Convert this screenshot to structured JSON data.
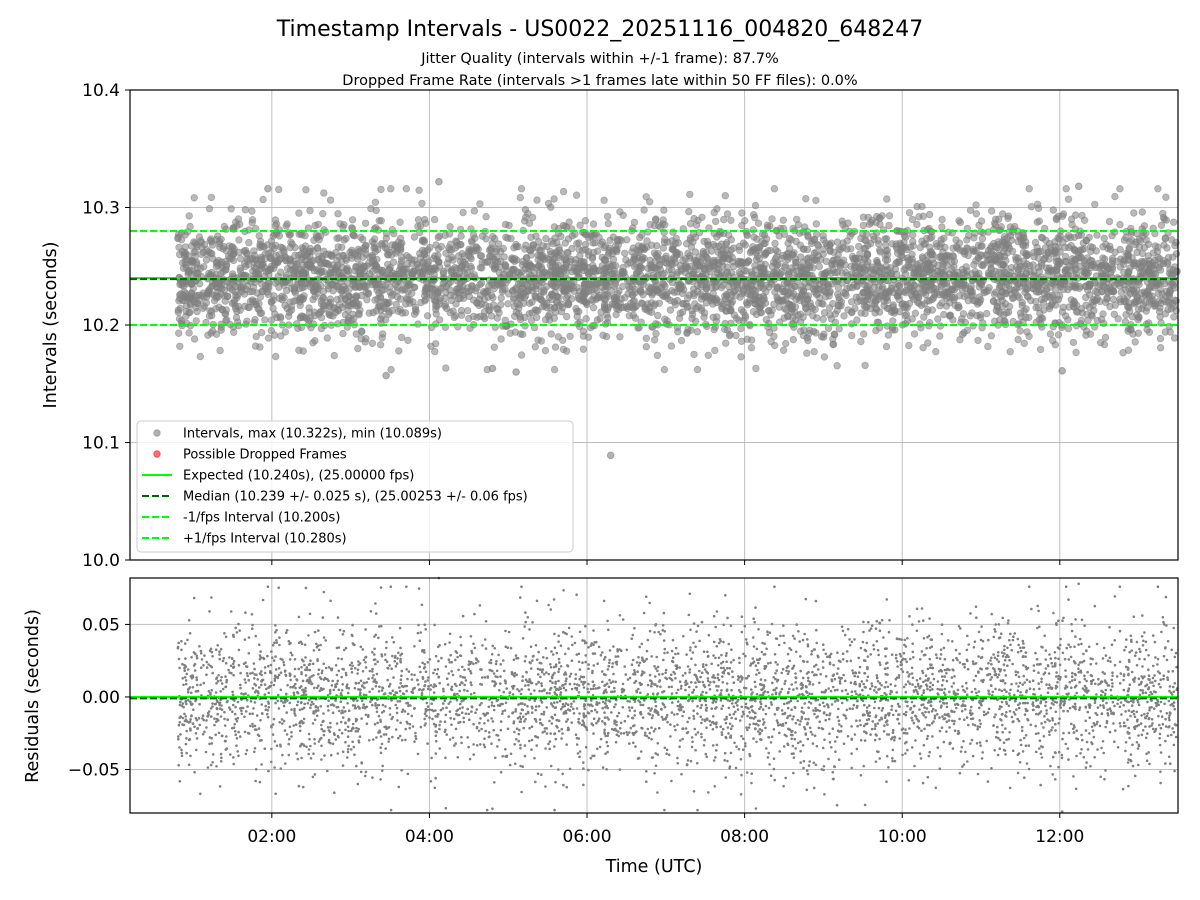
{
  "title": "Timestamp Intervals - US0022_20251116_004820_648247",
  "subtitle1": "Jitter Quality (intervals within +/-1 frame): 87.7%",
  "subtitle2": "Dropped Frame Rate (intervals >1 frames late within 50 FF files): 0.0%",
  "colors": {
    "points": "#808080",
    "dropped": "#ff0000",
    "expected": "#00ff00",
    "median": "#006400",
    "bounds": "#00ff00",
    "grid": "#b0b0b0"
  },
  "chart_data": [
    {
      "type": "scatter",
      "name": "intervals",
      "ylabel": "Intervals (seconds)",
      "xlim_hours": [
        0.2,
        13.5
      ],
      "ylim": [
        10.0,
        10.4
      ],
      "yticks": [
        10.0,
        10.1,
        10.2,
        10.3,
        10.4
      ],
      "ytick_labels": [
        "10.0",
        "10.1",
        "10.2",
        "10.3",
        "10.4"
      ],
      "series": [
        {
          "name": "Intervals, max (10.322s), min (10.089s)",
          "kind": "points",
          "x_range_hours": [
            0.8,
            13.5
          ],
          "count": 4600,
          "center": 10.24,
          "spread": 0.025,
          "max": 10.322,
          "min": 10.089,
          "notable": [
            {
              "x": 6.3,
              "y": 10.089
            },
            {
              "x": 4.12,
              "y": 10.322
            },
            {
              "x": 12.24,
              "y": 10.318
            },
            {
              "x": 1.95,
              "y": 10.316
            },
            {
              "x": 3.45,
              "y": 10.157
            },
            {
              "x": 12.03,
              "y": 10.161
            },
            {
              "x": 5.1,
              "y": 10.16
            },
            {
              "x": 4.8,
              "y": 10.163
            }
          ]
        },
        {
          "name": "Possible Dropped Frames",
          "kind": "points",
          "values": []
        },
        {
          "name": "Expected (10.240s), (25.00000 fps)",
          "kind": "hline",
          "value": 10.24
        },
        {
          "name": "Median (10.239 +/- 0.025 s), (25.00253 +/- 0.06 fps)",
          "kind": "hline",
          "value": 10.239
        },
        {
          "name": "-1/fps Interval (10.200s)",
          "kind": "hline",
          "value": 10.2
        },
        {
          "name": "+1/fps Interval (10.280s)",
          "kind": "hline",
          "value": 10.28
        }
      ],
      "legend": {
        "placement": "lower-left",
        "entries": [
          "Intervals, max (10.322s), min (10.089s)",
          "Possible Dropped Frames",
          "Expected (10.240s), (25.00000 fps)",
          "Median (10.239 +/- 0.025 s), (25.00253 +/- 0.06 fps)",
          "-1/fps Interval (10.200s)",
          "+1/fps Interval (10.280s)"
        ]
      }
    },
    {
      "type": "scatter",
      "name": "residuals",
      "ylabel": "Residuals (seconds)",
      "xlabel": "Time (UTC)",
      "xlim_hours": [
        0.2,
        13.5
      ],
      "ylim": [
        -0.08,
        0.082
      ],
      "yticks": [
        -0.05,
        0.0,
        0.05
      ],
      "ytick_labels": [
        "−0.05",
        "0.00",
        "0.05"
      ],
      "xticks_hours": [
        2,
        4,
        6,
        8,
        10,
        12
      ],
      "xtick_labels": [
        "02:00",
        "04:00",
        "06:00",
        "08:00",
        "10:00",
        "12:00"
      ],
      "series": [
        {
          "name": "residuals",
          "kind": "points",
          "x_range_hours": [
            0.8,
            13.5
          ],
          "count": 4600,
          "center": 0.0,
          "spread": 0.025
        },
        {
          "name": "expected",
          "kind": "hline",
          "value": 0.0
        },
        {
          "name": "median",
          "kind": "hline",
          "value": -0.001
        }
      ]
    }
  ]
}
